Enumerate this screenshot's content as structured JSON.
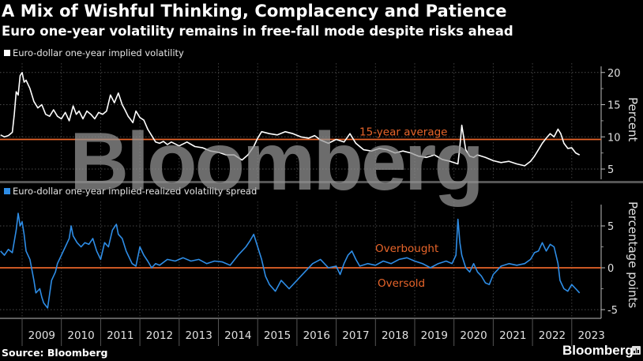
{
  "header": {
    "title": "A Mix of Wishful Thinking, Complacency and Patience",
    "subtitle": "Euro one-year volatility remains in free-fall mode despite risks ahead"
  },
  "footer": {
    "source": "Source: Bloomberg",
    "brand": "Bloomberg"
  },
  "watermark": "Bloomberg",
  "colors": {
    "implied_vol": "#ffffff",
    "spread": "#2e8de6",
    "reference": "#e8652a",
    "background": "#000000"
  },
  "chart_data": [
    {
      "type": "line",
      "title": "Euro-dollar one-year implied volatility",
      "legend": "Euro-dollar one-year implied volatility",
      "ylabel": "Percent",
      "yticks": [
        5,
        10,
        15,
        20
      ],
      "ylim": [
        3.5,
        21
      ],
      "xlim": [
        2008.45,
        2023.25
      ],
      "grid": true,
      "reference_line": {
        "value": 9.6,
        "label": "15-year average"
      },
      "series": [
        {
          "name": "Euro-dollar one-year implied volatility",
          "x": [
            2008.45,
            2008.55,
            2008.65,
            2008.75,
            2008.8,
            2008.85,
            2008.9,
            2008.95,
            2009.0,
            2009.05,
            2009.1,
            2009.2,
            2009.3,
            2009.4,
            2009.5,
            2009.6,
            2009.7,
            2009.8,
            2009.9,
            2010.0,
            2010.1,
            2010.2,
            2010.3,
            2010.38,
            2010.45,
            2010.55,
            2010.65,
            2010.75,
            2010.85,
            2010.95,
            2011.05,
            2011.15,
            2011.25,
            2011.35,
            2011.45,
            2011.55,
            2011.62,
            2011.7,
            2011.75,
            2011.82,
            2011.9,
            2012.0,
            2012.1,
            2012.2,
            2012.3,
            2012.4,
            2012.5,
            2012.6,
            2012.7,
            2012.8,
            2012.9,
            2013.0,
            2013.2,
            2013.4,
            2013.6,
            2013.8,
            2014.0,
            2014.2,
            2014.4,
            2014.6,
            2014.75,
            2014.9,
            2015.0,
            2015.1,
            2015.3,
            2015.5,
            2015.7,
            2015.9,
            2016.1,
            2016.3,
            2016.45,
            2016.6,
            2016.8,
            2017.0,
            2017.2,
            2017.35,
            2017.5,
            2017.7,
            2017.9,
            2018.1,
            2018.3,
            2018.5,
            2018.7,
            2018.9,
            2019.1,
            2019.3,
            2019.5,
            2019.7,
            2019.9,
            2020.1,
            2020.15,
            2020.2,
            2020.3,
            2020.4,
            2020.5,
            2020.6,
            2020.8,
            2021.0,
            2021.2,
            2021.4,
            2021.6,
            2021.8,
            2021.95,
            2022.05,
            2022.15,
            2022.25,
            2022.35,
            2022.45,
            2022.55,
            2022.65,
            2022.72,
            2022.8,
            2022.9,
            2023.0,
            2023.1,
            2023.2
          ],
          "y": [
            10.3,
            10.0,
            10.2,
            10.7,
            13.5,
            17.0,
            16.5,
            19.5,
            20.0,
            18.5,
            18.8,
            17.5,
            15.5,
            14.5,
            15.0,
            13.5,
            13.2,
            14.2,
            13.2,
            12.8,
            13.8,
            12.5,
            14.8,
            13.5,
            14.0,
            12.8,
            14.0,
            13.5,
            12.8,
            13.8,
            13.5,
            14.0,
            16.5,
            15.3,
            16.8,
            15.0,
            14.2,
            13.2,
            12.8,
            12.2,
            14.0,
            13.0,
            12.6,
            11.2,
            10.2,
            9.2,
            9.0,
            9.3,
            8.8,
            9.2,
            8.9,
            8.6,
            9.2,
            8.5,
            8.3,
            7.8,
            7.6,
            7.2,
            7.2,
            6.4,
            7.2,
            8.5,
            9.8,
            10.8,
            10.5,
            10.3,
            10.8,
            10.5,
            10.0,
            9.8,
            10.2,
            9.5,
            9.0,
            9.6,
            9.2,
            10.5,
            9.0,
            8.0,
            7.8,
            8.2,
            8.0,
            7.5,
            7.8,
            7.5,
            7.0,
            6.8,
            7.2,
            6.5,
            6.2,
            5.8,
            8.5,
            11.8,
            8.0,
            7.0,
            6.8,
            7.2,
            6.8,
            6.3,
            6.0,
            6.2,
            5.8,
            5.5,
            6.2,
            7.0,
            8.0,
            9.0,
            9.8,
            10.5,
            10.0,
            11.2,
            10.5,
            9.0,
            8.2,
            8.3,
            7.5,
            7.2
          ]
        }
      ]
    },
    {
      "type": "line",
      "title": "Euro-dollar one-year implied-realized volatility spread",
      "legend": "Euro-dollar one-year implied-realized volatility spread",
      "ylabel": "Percentage points",
      "yticks": [
        -5,
        0,
        5
      ],
      "ylim": [
        -5.8,
        7.7
      ],
      "xlim": [
        2008.45,
        2023.25
      ],
      "grid": true,
      "reference_line": {
        "value": 0,
        "label_above": "Overbought",
        "label_below": "Oversold"
      },
      "series": [
        {
          "name": "Euro-dollar one-year implied-realized volatility spread",
          "x": [
            2008.45,
            2008.55,
            2008.65,
            2008.75,
            2008.85,
            2008.9,
            2008.95,
            2009.0,
            2009.05,
            2009.1,
            2009.2,
            2009.3,
            2009.35,
            2009.45,
            2009.5,
            2009.55,
            2009.65,
            2009.75,
            2009.85,
            2009.9,
            2010.0,
            2010.1,
            2010.2,
            2010.25,
            2010.3,
            2010.4,
            2010.5,
            2010.6,
            2010.7,
            2010.8,
            2010.9,
            2011.0,
            2011.1,
            2011.2,
            2011.3,
            2011.4,
            2011.45,
            2011.55,
            2011.65,
            2011.7,
            2011.8,
            2011.9,
            2012.0,
            2012.1,
            2012.2,
            2012.3,
            2012.4,
            2012.5,
            2012.7,
            2012.9,
            2013.1,
            2013.3,
            2013.5,
            2013.7,
            2013.9,
            2014.1,
            2014.3,
            2014.5,
            2014.7,
            2014.8,
            2014.9,
            2015.0,
            2015.1,
            2015.2,
            2015.3,
            2015.45,
            2015.6,
            2015.8,
            2016.0,
            2016.2,
            2016.4,
            2016.6,
            2016.8,
            2017.0,
            2017.1,
            2017.2,
            2017.3,
            2017.4,
            2017.5,
            2017.6,
            2017.8,
            2018.0,
            2018.2,
            2018.4,
            2018.6,
            2018.8,
            2019.0,
            2019.2,
            2019.4,
            2019.6,
            2019.8,
            2019.95,
            2020.05,
            2020.1,
            2020.15,
            2020.2,
            2020.3,
            2020.4,
            2020.5,
            2020.6,
            2020.7,
            2020.8,
            2020.9,
            2021.0,
            2021.2,
            2021.4,
            2021.6,
            2021.8,
            2021.95,
            2022.05,
            2022.15,
            2022.25,
            2022.35,
            2022.45,
            2022.55,
            2022.6,
            2022.65,
            2022.7,
            2022.8,
            2022.9,
            2023.0,
            2023.1,
            2023.2
          ],
          "y": [
            2.0,
            1.5,
            2.2,
            1.8,
            4.5,
            6.5,
            5.0,
            5.5,
            4.0,
            2.0,
            1.0,
            -1.5,
            -3.0,
            -2.5,
            -3.5,
            -4.2,
            -4.8,
            -1.5,
            -0.5,
            0.5,
            1.5,
            2.5,
            3.5,
            5.0,
            3.8,
            3.0,
            2.5,
            3.0,
            2.8,
            3.5,
            2.0,
            1.0,
            3.0,
            2.5,
            4.5,
            5.2,
            4.0,
            3.5,
            2.0,
            1.5,
            0.5,
            0.2,
            2.5,
            1.5,
            0.8,
            0.0,
            0.5,
            0.3,
            1.0,
            0.8,
            1.2,
            0.8,
            1.0,
            0.5,
            0.8,
            0.7,
            0.3,
            1.5,
            2.5,
            3.2,
            4.0,
            2.5,
            1.0,
            -1.0,
            -2.0,
            -2.8,
            -1.5,
            -2.5,
            -1.5,
            -0.5,
            0.5,
            1.0,
            0.0,
            0.2,
            -0.8,
            0.5,
            1.5,
            2.0,
            1.0,
            0.2,
            0.5,
            0.3,
            0.8,
            0.5,
            1.0,
            1.2,
            0.8,
            0.5,
            0.0,
            0.5,
            0.8,
            0.5,
            1.5,
            5.8,
            3.0,
            1.5,
            0.0,
            -0.5,
            0.5,
            -0.5,
            -1.0,
            -1.8,
            -2.0,
            -0.8,
            0.2,
            0.5,
            0.3,
            0.5,
            1.0,
            1.8,
            2.0,
            3.0,
            2.0,
            2.8,
            2.5,
            1.5,
            0.5,
            -1.5,
            -2.5,
            -2.8,
            -2.0,
            -2.5,
            -3.0
          ]
        }
      ]
    }
  ],
  "x_axis": {
    "ticks": [
      "2009",
      "2010",
      "2011",
      "2012",
      "2013",
      "2014",
      "2015",
      "2016",
      "2017",
      "2018",
      "2019",
      "2020",
      "2021",
      "2022",
      "2023"
    ]
  }
}
